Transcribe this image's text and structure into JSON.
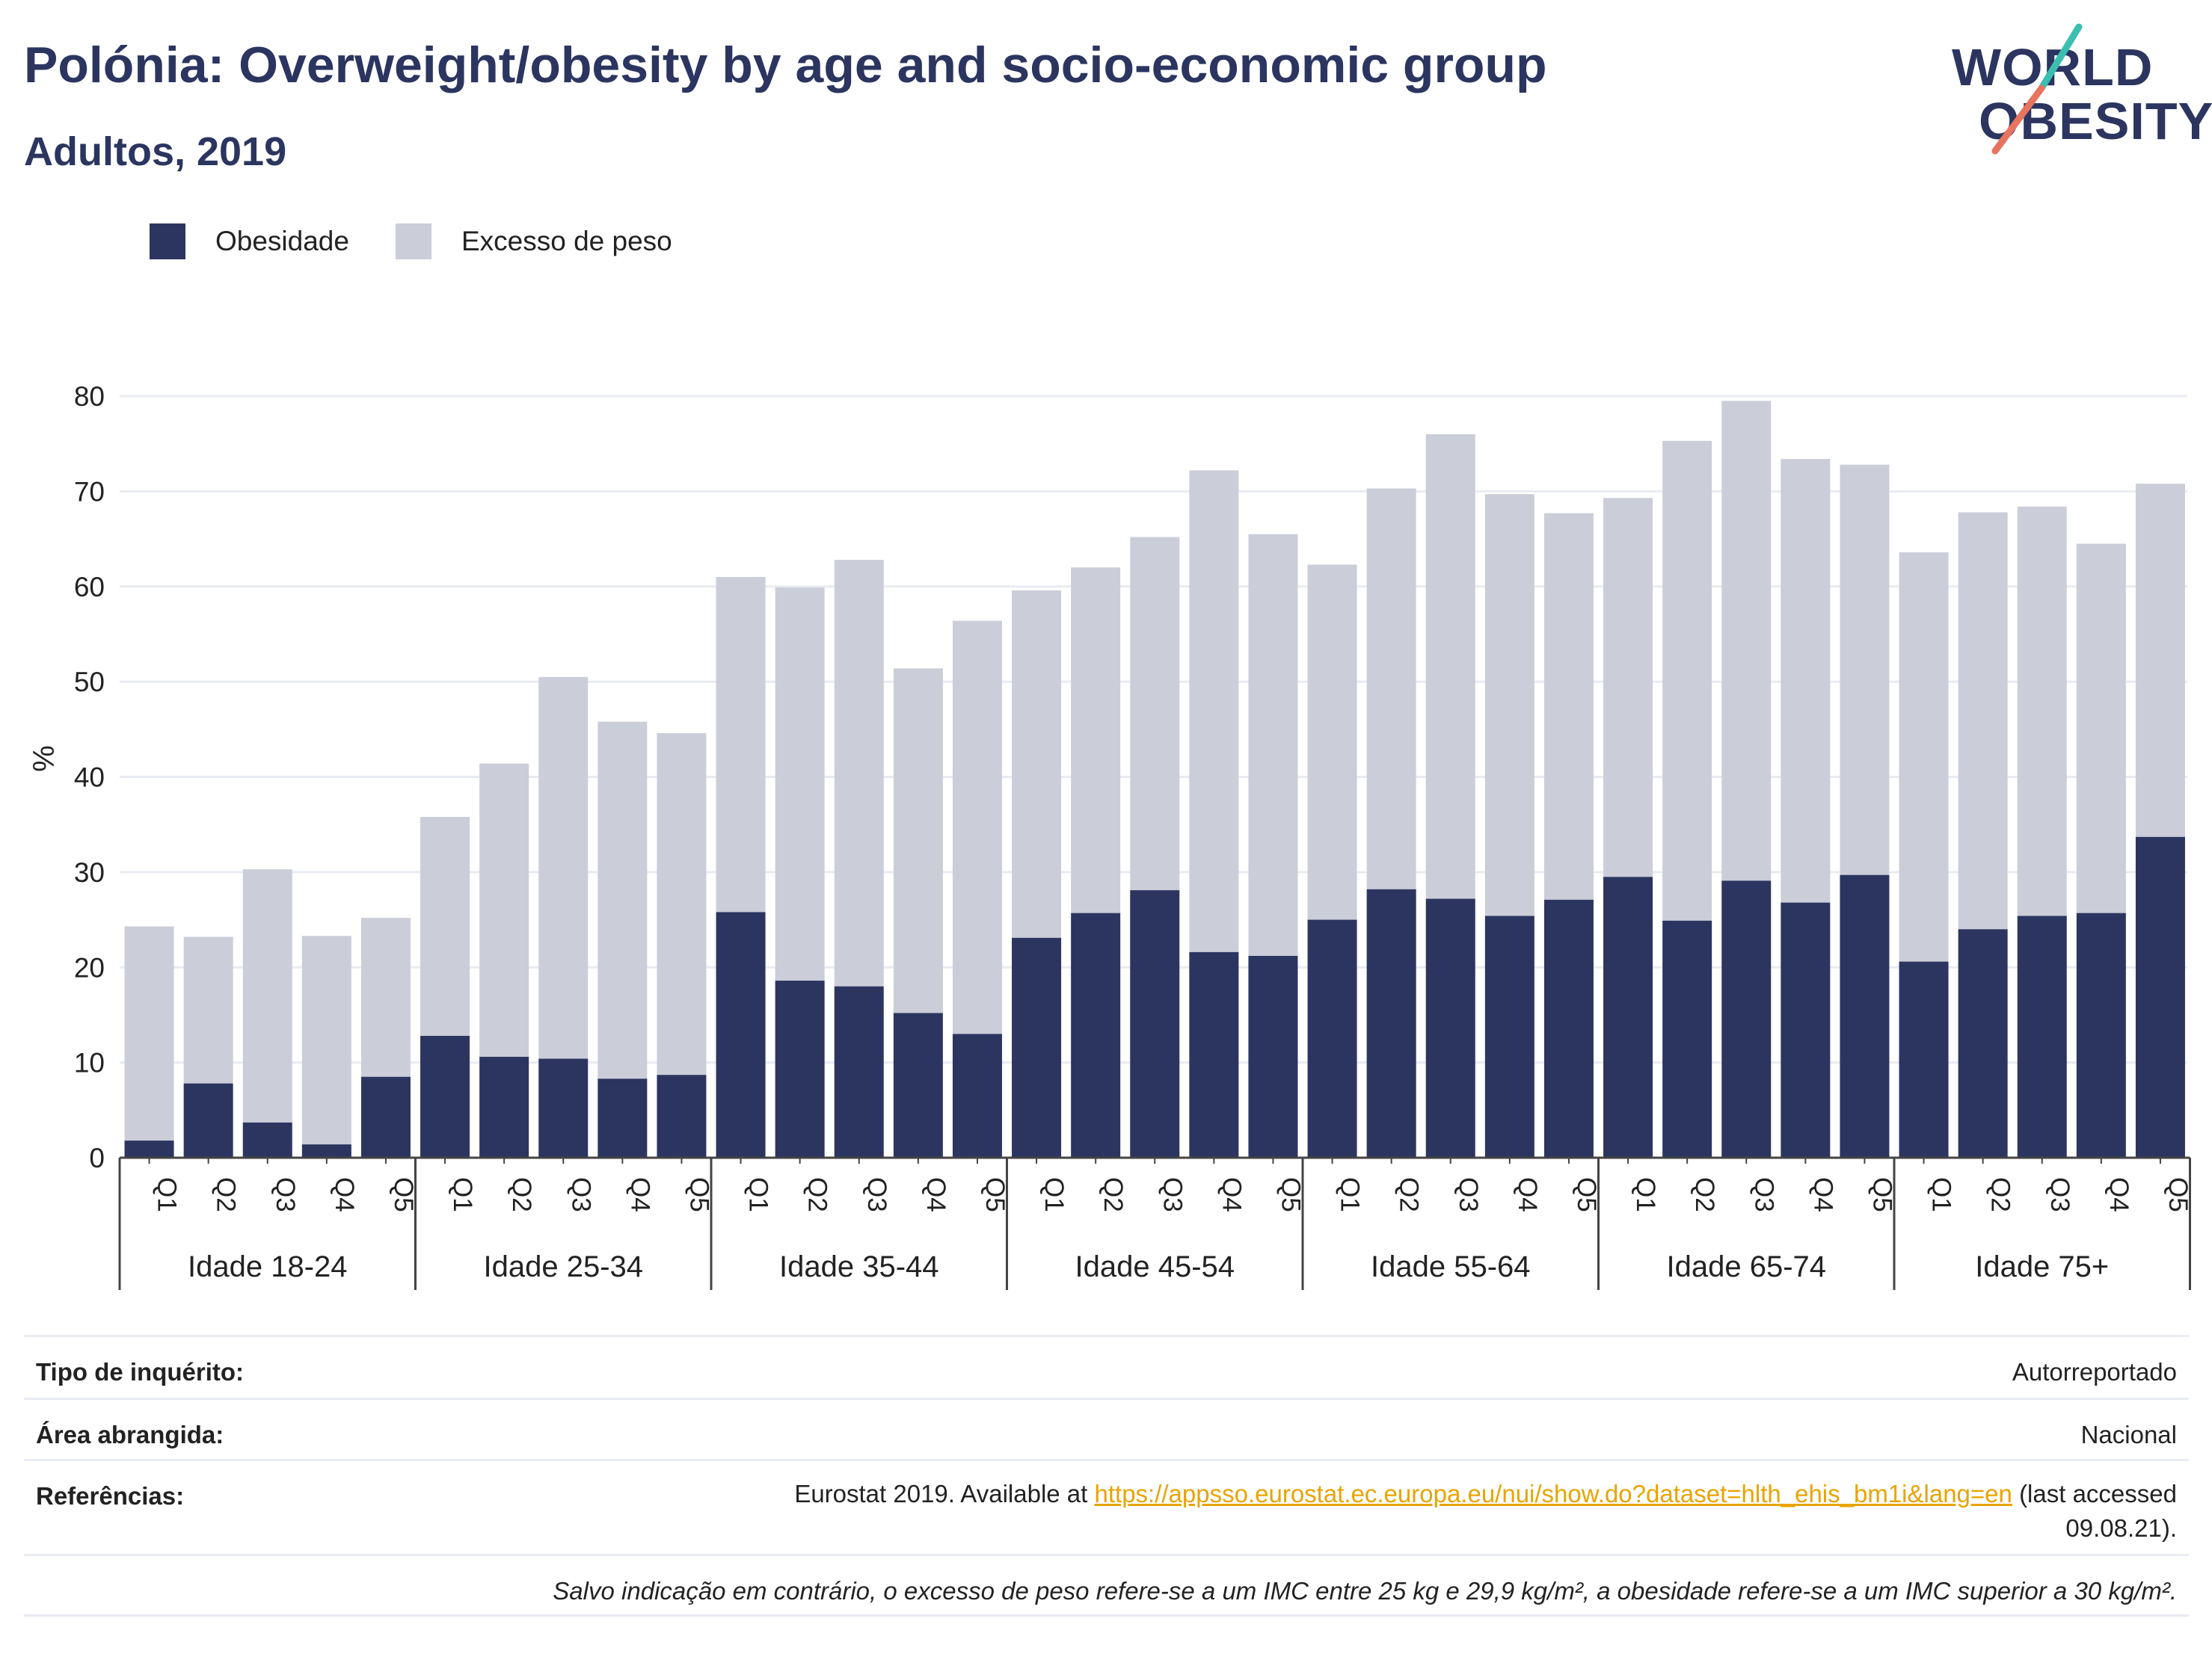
{
  "header": {
    "title": "Polónia: Overweight/obesity by age and socio-economic group",
    "subtitle": "Adultos, 2019"
  },
  "logo": {
    "line1": "WORLD",
    "line2": "OBESITY"
  },
  "colors": {
    "obesity": "#2b3560",
    "overweight": "#cbcdd9",
    "title": "#2b3560",
    "link": "#e8a400",
    "logo_teal": "#3bbfb0",
    "logo_red": "#e8735f"
  },
  "legend": [
    {
      "label": "Obesidade",
      "color": "#2b3560"
    },
    {
      "label": "Excesso de peso",
      "color": "#cbcdd9"
    }
  ],
  "chart_data": {
    "type": "bar",
    "stacked": true,
    "ylabel": "%",
    "ylim": [
      0,
      80
    ],
    "yticks": [
      0,
      10,
      20,
      30,
      40,
      50,
      60,
      70,
      80
    ],
    "grid": true,
    "legend_position": "top-left",
    "groups": [
      "Idade 18-24",
      "Idade 25-34",
      "Idade 35-44",
      "Idade 45-54",
      "Idade 55-64",
      "Idade 65-74",
      "Idade 75+"
    ],
    "categories": [
      "Q1",
      "Q2",
      "Q3",
      "Q4",
      "Q5"
    ],
    "series": [
      {
        "name": "Obesidade",
        "values": [
          [
            1.8,
            7.8,
            3.7,
            1.4,
            8.5
          ],
          [
            12.8,
            10.6,
            10.4,
            8.3,
            8.7
          ],
          [
            25.8,
            18.6,
            18.0,
            15.2,
            13.0
          ],
          [
            23.1,
            25.7,
            28.1,
            21.6,
            21.2
          ],
          [
            25.0,
            28.2,
            27.2,
            25.4,
            27.1
          ],
          [
            29.5,
            24.9,
            29.1,
            26.8,
            29.7
          ],
          [
            20.6,
            24.0,
            25.4,
            25.7,
            33.7
          ]
        ]
      },
      {
        "name": "Excesso de peso",
        "values": [
          [
            22.5,
            15.4,
            26.6,
            21.9,
            16.7
          ],
          [
            23.0,
            30.8,
            40.1,
            37.5,
            35.9
          ],
          [
            35.2,
            41.3,
            44.8,
            36.2,
            43.4
          ],
          [
            36.5,
            36.3,
            37.1,
            50.6,
            44.3
          ],
          [
            37.3,
            42.1,
            48.8,
            44.3,
            40.6
          ],
          [
            39.8,
            50.4,
            50.4,
            46.6,
            43.1
          ],
          [
            43.0,
            43.8,
            43.0,
            38.8,
            37.1
          ]
        ]
      }
    ]
  },
  "info": {
    "survey_label": "Tipo de inquérito:",
    "survey_value": "Autorreportado",
    "area_label": "Área abrangida:",
    "area_value": "Nacional",
    "refs_label": "Referências:",
    "refs_prefix": "Eurostat 2019. Available at",
    "refs_link": "https://appsso.eurostat.ec.europa.eu/nui/show.do?dataset=hlth_ehis_bm1i&lang=en",
    "refs_suffix1": "(last accessed",
    "refs_suffix2": "09.08.21).",
    "note": "Salvo indicação em contrário, o excesso de peso refere-se a um IMC entre 25 kg e 29,9 kg/m², a obesidade refere-se a um IMC superior a 30 kg/m²."
  }
}
